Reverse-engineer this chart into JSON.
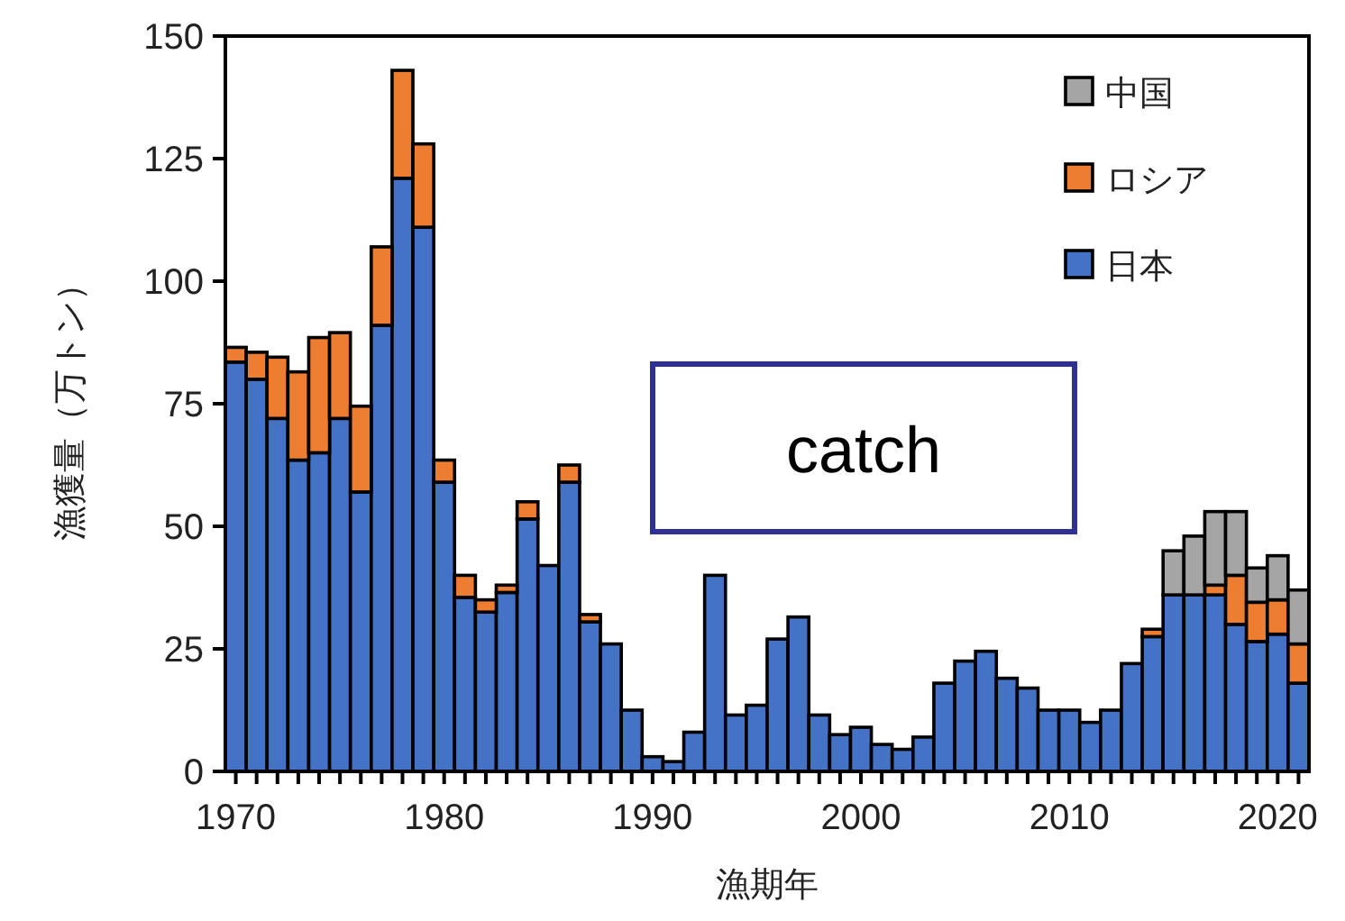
{
  "chart_data": {
    "type": "bar",
    "stacked": true,
    "xlabel": "漁期年",
    "ylabel": "漁獲量（万トン）",
    "x": [
      1970,
      1971,
      1972,
      1973,
      1974,
      1975,
      1976,
      1977,
      1978,
      1979,
      1980,
      1981,
      1982,
      1983,
      1984,
      1985,
      1986,
      1987,
      1988,
      1989,
      1990,
      1991,
      1992,
      1993,
      1994,
      1995,
      1996,
      1997,
      1998,
      1999,
      2000,
      2001,
      2002,
      2003,
      2004,
      2005,
      2006,
      2007,
      2008,
      2009,
      2010,
      2011,
      2012,
      2013,
      2014,
      2015,
      2016,
      2017,
      2018,
      2019,
      2020,
      2021
    ],
    "series": [
      {
        "name": "日本",
        "color": "#4472c4",
        "values": [
          83.5,
          80,
          72,
          63.5,
          65,
          72,
          57,
          91,
          121,
          111,
          59,
          35.5,
          32.5,
          36.5,
          51.5,
          42,
          59,
          30.5,
          26,
          12.5,
          3,
          2,
          8,
          40,
          11.5,
          13.5,
          27,
          31.5,
          11.5,
          7.5,
          9,
          5.5,
          4.5,
          7,
          18,
          22.5,
          24.5,
          19,
          17,
          12.5,
          12.5,
          10,
          12.5,
          22,
          27.5,
          36,
          36,
          36,
          30,
          26.5,
          28,
          18
        ]
      },
      {
        "name": "ロシア",
        "color": "#ed7d31",
        "values": [
          3,
          5.5,
          12.5,
          18,
          23.5,
          17.5,
          17.5,
          16,
          22,
          17,
          4.5,
          4.5,
          2.5,
          1.5,
          3.5,
          0,
          3.5,
          1.5,
          0,
          0,
          0,
          0,
          0,
          0,
          0,
          0,
          0,
          0,
          0,
          0,
          0,
          0,
          0,
          0,
          0,
          0,
          0,
          0,
          0,
          0,
          0,
          0,
          0,
          0,
          1.5,
          0,
          0,
          2,
          10,
          8,
          7,
          8
        ]
      },
      {
        "name": "中国",
        "color": "#a5a5a5",
        "values": [
          0,
          0,
          0,
          0,
          0,
          0,
          0,
          0,
          0,
          0,
          0,
          0,
          0,
          0,
          0,
          0,
          0,
          0,
          0,
          0,
          0,
          0,
          0,
          0,
          0,
          0,
          0,
          0,
          0,
          0,
          0,
          0,
          0,
          0,
          0,
          0,
          0,
          0,
          0,
          0,
          0,
          0,
          0,
          0,
          0,
          9,
          12,
          15,
          13,
          7,
          9,
          11
        ]
      }
    ],
    "xlim": [
      1969.5,
      2021.5
    ],
    "ylim": [
      0,
      150
    ],
    "xticks": [
      1970,
      {
        "value": 1971,
        "label": null
      },
      {
        "value": 1972,
        "label": null
      },
      {
        "value": 1973,
        "label": null
      },
      {
        "value": 1974,
        "label": null
      },
      {
        "value": 1975,
        "label": null
      },
      {
        "value": 1976,
        "label": null
      },
      {
        "value": 1977,
        "label": null
      },
      {
        "value": 1978,
        "label": null
      },
      {
        "value": 1979,
        "label": null
      },
      1980,
      {
        "value": 1981,
        "label": null
      },
      {
        "value": 1982,
        "label": null
      },
      {
        "value": 1983,
        "label": null
      },
      {
        "value": 1984,
        "label": null
      },
      {
        "value": 1985,
        "label": null
      },
      {
        "value": 1986,
        "label": null
      },
      {
        "value": 1987,
        "label": null
      },
      {
        "value": 1988,
        "label": null
      },
      {
        "value": 1989,
        "label": null
      },
      1990,
      {
        "value": 1991,
        "label": null
      },
      {
        "value": 1992,
        "label": null
      },
      {
        "value": 1993,
        "label": null
      },
      {
        "value": 1994,
        "label": null
      },
      {
        "value": 1995,
        "label": null
      },
      {
        "value": 1996,
        "label": null
      },
      {
        "value": 1997,
        "label": null
      },
      {
        "value": 1998,
        "label": null
      },
      {
        "value": 1999,
        "label": null
      },
      2000,
      {
        "value": 2001,
        "label": null
      },
      {
        "value": 2002,
        "label": null
      },
      {
        "value": 2003,
        "label": null
      },
      {
        "value": 2004,
        "label": null
      },
      {
        "value": 2005,
        "label": null
      },
      {
        "value": 2006,
        "label": null
      },
      {
        "value": 2007,
        "label": null
      },
      {
        "value": 2008,
        "label": null
      },
      {
        "value": 2009,
        "label": null
      },
      2010,
      {
        "value": 2011,
        "label": null
      },
      {
        "value": 2012,
        "label": null
      },
      {
        "value": 2013,
        "label": null
      },
      {
        "value": 2014,
        "label": null
      },
      {
        "value": 2015,
        "label": null
      },
      {
        "value": 2016,
        "label": null
      },
      {
        "value": 2017,
        "label": null
      },
      {
        "value": 2018,
        "label": null
      },
      {
        "value": 2019,
        "label": null
      },
      2020,
      {
        "value": 2021,
        "label": null
      }
    ],
    "yticks": [
      0,
      25,
      50,
      75,
      100,
      125,
      150
    ],
    "legend": "top right",
    "annotations": [
      "catch"
    ]
  }
}
